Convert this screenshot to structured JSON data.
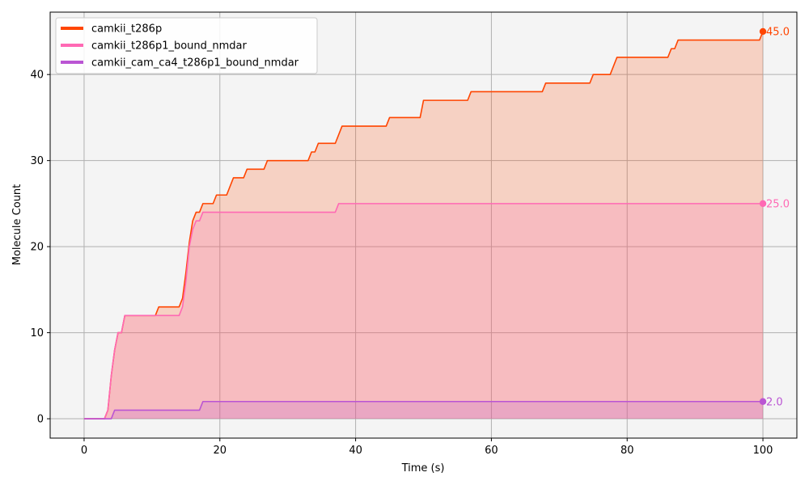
{
  "chart_data": {
    "type": "area",
    "xlabel": "Time (s)",
    "ylabel": "Molecule Count",
    "xlim": [
      -5,
      105
    ],
    "ylim": [
      -2.25,
      47.25
    ],
    "xticks": [
      0,
      20,
      40,
      60,
      80,
      100
    ],
    "yticks": [
      0,
      10,
      20,
      30,
      40
    ],
    "grid": true,
    "legend_position": "top-left",
    "series": [
      {
        "name": "camkii_t286p",
        "color": "#ff4500",
        "end_label": "45.0",
        "points": [
          [
            0,
            0
          ],
          [
            3,
            0
          ],
          [
            3.5,
            1
          ],
          [
            4,
            5
          ],
          [
            4.5,
            8
          ],
          [
            5,
            10
          ],
          [
            5.5,
            10
          ],
          [
            6,
            12
          ],
          [
            10.5,
            12
          ],
          [
            11,
            13
          ],
          [
            14,
            13
          ],
          [
            14.5,
            14
          ],
          [
            15,
            17
          ],
          [
            15.5,
            20.5
          ],
          [
            16,
            23
          ],
          [
            16.5,
            24
          ],
          [
            17,
            24
          ],
          [
            17.5,
            25
          ],
          [
            19,
            25
          ],
          [
            19.5,
            26
          ],
          [
            21,
            26
          ],
          [
            22,
            28
          ],
          [
            23.5,
            28
          ],
          [
            24,
            29
          ],
          [
            26.5,
            29
          ],
          [
            27,
            30
          ],
          [
            33,
            30
          ],
          [
            33.5,
            31
          ],
          [
            34,
            31
          ],
          [
            34.5,
            32
          ],
          [
            37,
            32
          ],
          [
            38,
            34
          ],
          [
            44.5,
            34
          ],
          [
            45,
            35
          ],
          [
            49.5,
            35
          ],
          [
            50,
            37
          ],
          [
            56.5,
            37
          ],
          [
            57,
            38
          ],
          [
            67.5,
            38
          ],
          [
            68,
            39
          ],
          [
            74.5,
            39
          ],
          [
            75,
            40
          ],
          [
            77.5,
            40
          ],
          [
            78.5,
            42
          ],
          [
            86,
            42
          ],
          [
            86.5,
            43
          ],
          [
            87,
            43
          ],
          [
            87.5,
            44
          ],
          [
            99.5,
            44
          ],
          [
            100,
            45
          ]
        ]
      },
      {
        "name": "camkii_t286p1_bound_nmdar",
        "color": "#ff69b4",
        "end_label": "25.0",
        "points": [
          [
            0,
            0
          ],
          [
            3,
            0
          ],
          [
            3.5,
            1
          ],
          [
            4,
            5
          ],
          [
            4.5,
            8
          ],
          [
            5,
            10
          ],
          [
            5.5,
            10
          ],
          [
            6,
            12
          ],
          [
            14,
            12
          ],
          [
            14.5,
            13
          ],
          [
            15,
            16
          ],
          [
            15.5,
            20
          ],
          [
            16,
            22
          ],
          [
            16.5,
            23
          ],
          [
            17,
            23
          ],
          [
            17.5,
            24
          ],
          [
            37,
            24
          ],
          [
            37.5,
            25
          ],
          [
            100,
            25
          ]
        ]
      },
      {
        "name": "camkii_cam_ca4_t286p1_bound_nmdar",
        "color": "#ba55d3",
        "end_label": "2.0",
        "points": [
          [
            0,
            0
          ],
          [
            4,
            0
          ],
          [
            4.5,
            1
          ],
          [
            17,
            1
          ],
          [
            17.5,
            2
          ],
          [
            100,
            2
          ]
        ]
      }
    ]
  }
}
